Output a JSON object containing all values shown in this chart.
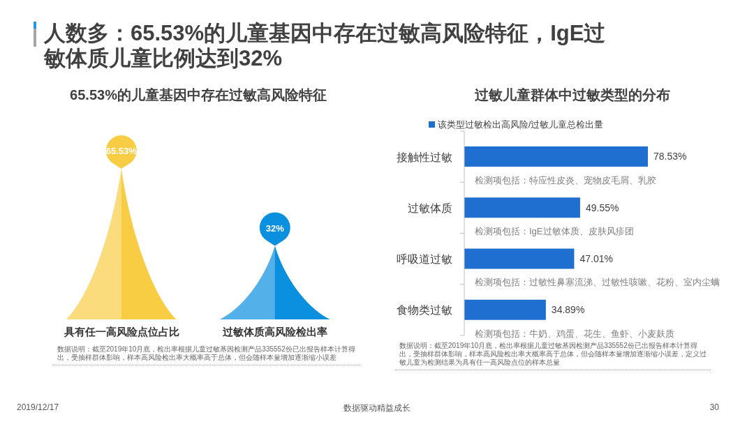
{
  "chart_data": [
    {
      "type": "other",
      "title": "人数多：65.53%的儿童基因中存在过敏高风险特征，IgE过敏体质儿童比例达到32%",
      "annotations": [
        "2019/12/17",
        "数据驱动精益成长",
        "30"
      ]
    },
    {
      "type": "bar",
      "title": "65.53%的儿童基因中存在过敏高风险特征",
      "categories": [
        "具有任一高风险点位占比",
        "过敏体质高风险检出率"
      ],
      "values": [
        65.53,
        32
      ],
      "colors": [
        "#f8cd44",
        "#0b8fdf"
      ],
      "value_labels": [
        "65.53%",
        "32%"
      ],
      "annotations": [
        "数据说明：截至2019年10月底，检出率根据儿童过敏基因检测产品335552份已出报告样本计算得出，受抽样群体影响，样本高风险检出率大概率高于总体，但会随样本量增加逐渐缩小误差"
      ]
    },
    {
      "type": "bar",
      "orientation": "horizontal",
      "title": "过敏儿童群体中过敏类型的分布",
      "categories": [
        "接触性过敏",
        "过敏体质",
        "呼吸道过敏",
        "食物类过敏"
      ],
      "series": [
        {
          "name": "该类型过敏检出高风险/过敏儿童总检出量",
          "color": "#1f6fd0",
          "values": [
            78.53,
            49.55,
            47.01,
            34.89
          ],
          "value_labels": [
            "78.53%",
            "49.55%",
            "47.01%",
            "34.89%"
          ]
        }
      ],
      "legend": "top",
      "annotations": [
        "检测项包括：特应性皮炎、宠物皮毛屑、乳胶",
        "检测项包括：IgE过敏体质、皮肤风疹团",
        "检测项包括：过敏性鼻塞流涕、过敏性咳嗽、花粉、室内尘螨",
        "检测项包括：牛奶、鸡蛋、花生、鱼虾、小麦麸质",
        "数据说明：截至2019年10月底，检出率根据儿童过敏基因检测产品335552份已出报告样本计算得出，受抽样群体影响，样本高风险检出率大概率高于总体，但会随样本量增加逐渐缩小误差，定义过敏儿童为检测结果为具有任一高风险点位的样本总量"
      ]
    }
  ]
}
